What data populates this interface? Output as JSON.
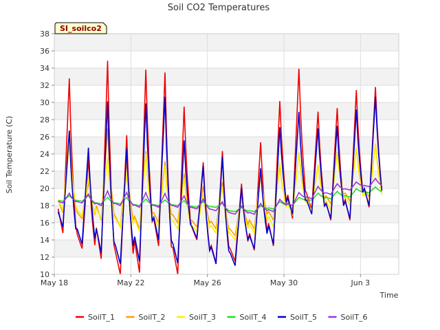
{
  "chart_data": {
    "type": "line",
    "title": "Soil CO2 Temperatures",
    "tag": "SI_soilco2",
    "xlabel": "Time",
    "ylabel": "Soil Temperature (C)",
    "ylim": [
      10,
      38
    ],
    "yticks": [
      10,
      12,
      14,
      16,
      18,
      20,
      22,
      24,
      26,
      28,
      30,
      32,
      34,
      36,
      38
    ],
    "xlim": [
      0,
      18
    ],
    "xticks": [
      {
        "value": 0,
        "label": "May 18"
      },
      {
        "value": 4,
        "label": "May 22"
      },
      {
        "value": 8,
        "label": "May 26"
      },
      {
        "value": 12,
        "label": "May 30"
      },
      {
        "value": 16,
        "label": "Jun 3"
      }
    ],
    "grid": true,
    "legend_position": "bottom",
    "x_unit": "days since May 18",
    "series": [
      {
        "name": "SoilT_1",
        "color": "#ee0000",
        "min": [
          14.8,
          13.0,
          11.8,
          10.0,
          10.2,
          13.3,
          10.0,
          14.0,
          11.3,
          11.5,
          12.8,
          13.3,
          16.5,
          17.5,
          16.3,
          16.3,
          17.8
        ],
        "max": [
          33.7,
          24.0,
          36.0,
          27.0,
          35.0,
          34.5,
          30.5,
          23.5,
          25.0,
          21.0,
          26.0,
          31.0,
          34.8,
          29.5,
          30.0,
          32.2,
          32.5
        ]
      },
      {
        "name": "SoilT_2",
        "color": "#ff9900",
        "min": [
          17.2,
          16.5,
          16.3,
          15.5,
          15.3,
          16.0,
          16.0,
          15.5,
          15.3,
          14.5,
          15.3,
          16.3,
          17.5,
          18.0,
          18.2,
          18.5,
          19.0
        ],
        "max": [
          27.0,
          21.0,
          27.5,
          23.5,
          24.8,
          23.5,
          22.0,
          20.5,
          21.0,
          19.3,
          22.0,
          23.0,
          24.5,
          23.0,
          24.5,
          25.0,
          25.5
        ]
      },
      {
        "name": "SoilT_3",
        "color": "#ffee00",
        "min": [
          17.5,
          16.8,
          16.5,
          15.5,
          15.0,
          15.5,
          15.3,
          15.0,
          14.8,
          14.0,
          14.8,
          15.5,
          17.0,
          17.5,
          17.5,
          18.0,
          18.3
        ],
        "max": [
          25.5,
          21.5,
          24.0,
          22.0,
          24.5,
          23.0,
          21.5,
          19.5,
          20.5,
          19.0,
          22.0,
          23.5,
          24.5,
          23.0,
          24.5,
          25.0,
          25.5
        ]
      },
      {
        "name": "SoilT_4",
        "color": "#22dd22",
        "min": [
          18.5,
          18.5,
          18.2,
          18.2,
          18.0,
          18.0,
          18.0,
          17.8,
          17.8,
          17.3,
          17.3,
          17.6,
          18.0,
          18.6,
          18.8,
          19.0,
          19.5
        ],
        "max": [
          19.2,
          19.2,
          19.0,
          19.0,
          18.8,
          18.7,
          18.6,
          18.5,
          18.3,
          17.8,
          18.0,
          18.5,
          19.0,
          19.5,
          19.7,
          20.0,
          20.2
        ]
      },
      {
        "name": "SoilT_5",
        "color": "#0000cc",
        "min": [
          15.5,
          13.5,
          12.5,
          11.2,
          11.5,
          14.0,
          11.3,
          14.2,
          11.2,
          11.0,
          13.0,
          13.5,
          17.0,
          17.0,
          16.5,
          16.5,
          18.0
        ],
        "max": [
          27.3,
          25.3,
          31.0,
          25.3,
          30.8,
          31.5,
          26.3,
          23.0,
          24.3,
          20.5,
          22.8,
          27.8,
          29.5,
          27.5,
          27.8,
          29.8,
          31.3
        ]
      },
      {
        "name": "SoilT_6",
        "color": "#9933dd",
        "min": [
          18.3,
          18.3,
          18.0,
          18.0,
          17.8,
          17.8,
          17.8,
          17.6,
          17.4,
          17.0,
          17.0,
          17.3,
          18.0,
          18.8,
          19.3,
          19.8,
          20.2
        ],
        "max": [
          19.5,
          19.4,
          19.8,
          19.6,
          19.6,
          19.5,
          19.2,
          18.8,
          18.5,
          18.0,
          18.3,
          18.8,
          19.6,
          20.3,
          20.6,
          20.8,
          21.2
        ]
      }
    ]
  }
}
